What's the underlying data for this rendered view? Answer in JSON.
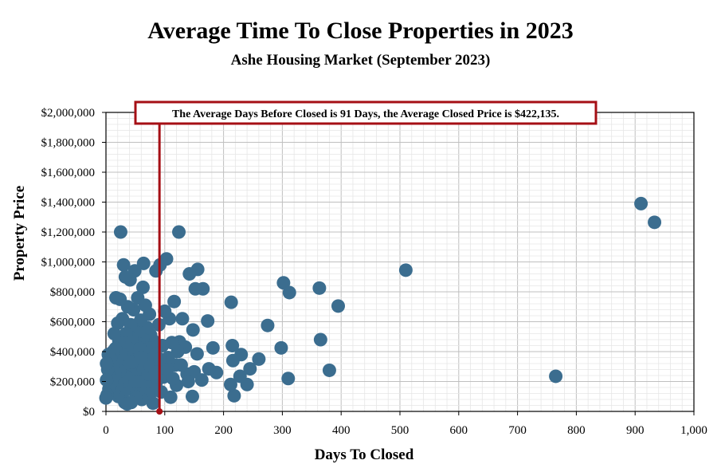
{
  "chart_data": {
    "type": "scatter",
    "title": "Average Time To Close Properties in 2023",
    "subtitle": "Ashe Housing Market (September 2023)",
    "xlabel": "Days To Closed",
    "ylabel": "Property Price",
    "xlim": [
      0,
      1000
    ],
    "ylim": [
      0,
      2000000
    ],
    "x_ticks": [
      0,
      100,
      200,
      300,
      400,
      500,
      600,
      700,
      800,
      900,
      1000
    ],
    "x_tick_labels": [
      "0",
      "100",
      "200",
      "300",
      "400",
      "500",
      "600",
      "700",
      "800",
      "900",
      "1,000"
    ],
    "y_ticks": [
      0,
      200000,
      400000,
      600000,
      800000,
      1000000,
      1200000,
      1400000,
      1600000,
      1800000,
      2000000
    ],
    "y_tick_labels": [
      "$0",
      "$200,000",
      "$400,000",
      "$600,000",
      "$800,000",
      "$1,000,000",
      "$1,200,000",
      "$1,400,000",
      "$1,600,000",
      "$1,800,000",
      "$2,000,000"
    ],
    "grid": true,
    "annotation": {
      "text": "The Average Days Before Closed is 91 Days, the Average Closed Price is $422,135.",
      "avg_days": 91,
      "avg_price": 422135
    },
    "colors": {
      "points": "#3b6d8f",
      "annotation": "#a50f15",
      "grid_major": "#bfbfbf",
      "grid_minor": "#e6e6e6"
    },
    "points": [
      [
        910,
        1390000
      ],
      [
        933,
        1265000
      ],
      [
        765,
        235000
      ],
      [
        510,
        945000
      ],
      [
        395,
        705000
      ],
      [
        380,
        275000
      ],
      [
        365,
        480000
      ],
      [
        363,
        825000
      ],
      [
        312,
        795000
      ],
      [
        310,
        220000
      ],
      [
        302,
        860000
      ],
      [
        298,
        425000
      ],
      [
        275,
        575000
      ],
      [
        260,
        350000
      ],
      [
        245,
        285000
      ],
      [
        240,
        180000
      ],
      [
        230,
        380000
      ],
      [
        228,
        235000
      ],
      [
        218,
        105000
      ],
      [
        216,
        340000
      ],
      [
        215,
        440000
      ],
      [
        213,
        730000
      ],
      [
        212,
        180000
      ],
      [
        188,
        260000
      ],
      [
        182,
        425000
      ],
      [
        175,
        285000
      ],
      [
        173,
        605000
      ],
      [
        165,
        820000
      ],
      [
        163,
        210000
      ],
      [
        156,
        950000
      ],
      [
        155,
        385000
      ],
      [
        152,
        820000
      ],
      [
        150,
        265000
      ],
      [
        148,
        545000
      ],
      [
        147,
        100000
      ],
      [
        142,
        920000
      ],
      [
        138,
        250000
      ],
      [
        135,
        430000
      ],
      [
        130,
        620000
      ],
      [
        125,
        465000
      ],
      [
        124,
        1200000
      ],
      [
        122,
        400000
      ],
      [
        120,
        175000
      ],
      [
        118,
        310000
      ],
      [
        116,
        735000
      ],
      [
        112,
        460000
      ],
      [
        110,
        95000
      ],
      [
        108,
        620000
      ],
      [
        106,
        360000
      ],
      [
        103,
        1020000
      ],
      [
        100,
        670000
      ],
      [
        98,
        230000
      ],
      [
        96,
        440000
      ],
      [
        94,
        130000
      ],
      [
        92,
        980000
      ],
      [
        90,
        580000
      ],
      [
        88,
        310000
      ],
      [
        86,
        200000
      ],
      [
        85,
        940000
      ],
      [
        84,
        420000
      ],
      [
        82,
        140000
      ],
      [
        81,
        470000
      ],
      [
        80,
        55000
      ],
      [
        79,
        345000
      ],
      [
        78,
        250000
      ],
      [
        76,
        510000
      ],
      [
        75,
        180000
      ],
      [
        74,
        650000
      ],
      [
        72,
        380000
      ],
      [
        71,
        120000
      ],
      [
        70,
        560000
      ],
      [
        69,
        290000
      ],
      [
        68,
        430000
      ],
      [
        67,
        710000
      ],
      [
        66,
        200000
      ],
      [
        65,
        330000
      ],
      [
        64,
        990000
      ],
      [
        63,
        830000
      ],
      [
        62,
        480000
      ],
      [
        61,
        80000
      ],
      [
        60,
        260000
      ],
      [
        59,
        610000
      ],
      [
        58,
        370000
      ],
      [
        57,
        150000
      ],
      [
        56,
        450000
      ],
      [
        55,
        220000
      ],
      [
        54,
        760000
      ],
      [
        53,
        300000
      ],
      [
        52,
        530000
      ],
      [
        51,
        100000
      ],
      [
        50,
        400000
      ],
      [
        49,
        940000
      ],
      [
        48,
        180000
      ],
      [
        47,
        680000
      ],
      [
        46,
        340000
      ],
      [
        45,
        250000
      ],
      [
        44,
        490000
      ],
      [
        43,
        60000
      ],
      [
        42,
        580000
      ],
      [
        41,
        880000
      ],
      [
        40,
        300000
      ],
      [
        39,
        420000
      ],
      [
        38,
        160000
      ],
      [
        37,
        700000
      ],
      [
        36,
        360000
      ],
      [
        35,
        230000
      ],
      [
        34,
        520000
      ],
      [
        33,
        900000
      ],
      [
        32,
        60000
      ],
      [
        31,
        460000
      ],
      [
        30,
        130000
      ],
      [
        30,
        980000
      ],
      [
        29,
        310000
      ],
      [
        28,
        620000
      ],
      [
        27,
        200000
      ],
      [
        26,
        380000
      ],
      [
        25,
        1200000
      ],
      [
        24,
        750000
      ],
      [
        23,
        270000
      ],
      [
        22,
        470000
      ],
      [
        21,
        100000
      ],
      [
        20,
        590000
      ],
      [
        19,
        340000
      ],
      [
        18,
        170000
      ],
      [
        17,
        760000
      ],
      [
        16,
        420000
      ],
      [
        15,
        250000
      ],
      [
        14,
        520000
      ],
      [
        13,
        130000
      ],
      [
        12,
        400000
      ],
      [
        11,
        300000
      ],
      [
        10,
        200000
      ],
      [
        8,
        360000
      ],
      [
        6,
        250000
      ],
      [
        5,
        150000
      ],
      [
        4,
        380000
      ],
      [
        3,
        280000
      ],
      [
        2,
        110000
      ],
      [
        1,
        210000
      ],
      [
        1,
        320000
      ],
      [
        0,
        90000
      ],
      [
        36,
        50000
      ],
      [
        58,
        420000
      ],
      [
        64,
        280000
      ],
      [
        72,
        250000
      ],
      [
        44,
        330000
      ],
      [
        52,
        200000
      ],
      [
        60,
        360000
      ],
      [
        76,
        300000
      ],
      [
        84,
        260000
      ],
      [
        92,
        350000
      ],
      [
        104,
        280000
      ],
      [
        114,
        220000
      ],
      [
        128,
        310000
      ],
      [
        140,
        200000
      ]
    ]
  }
}
